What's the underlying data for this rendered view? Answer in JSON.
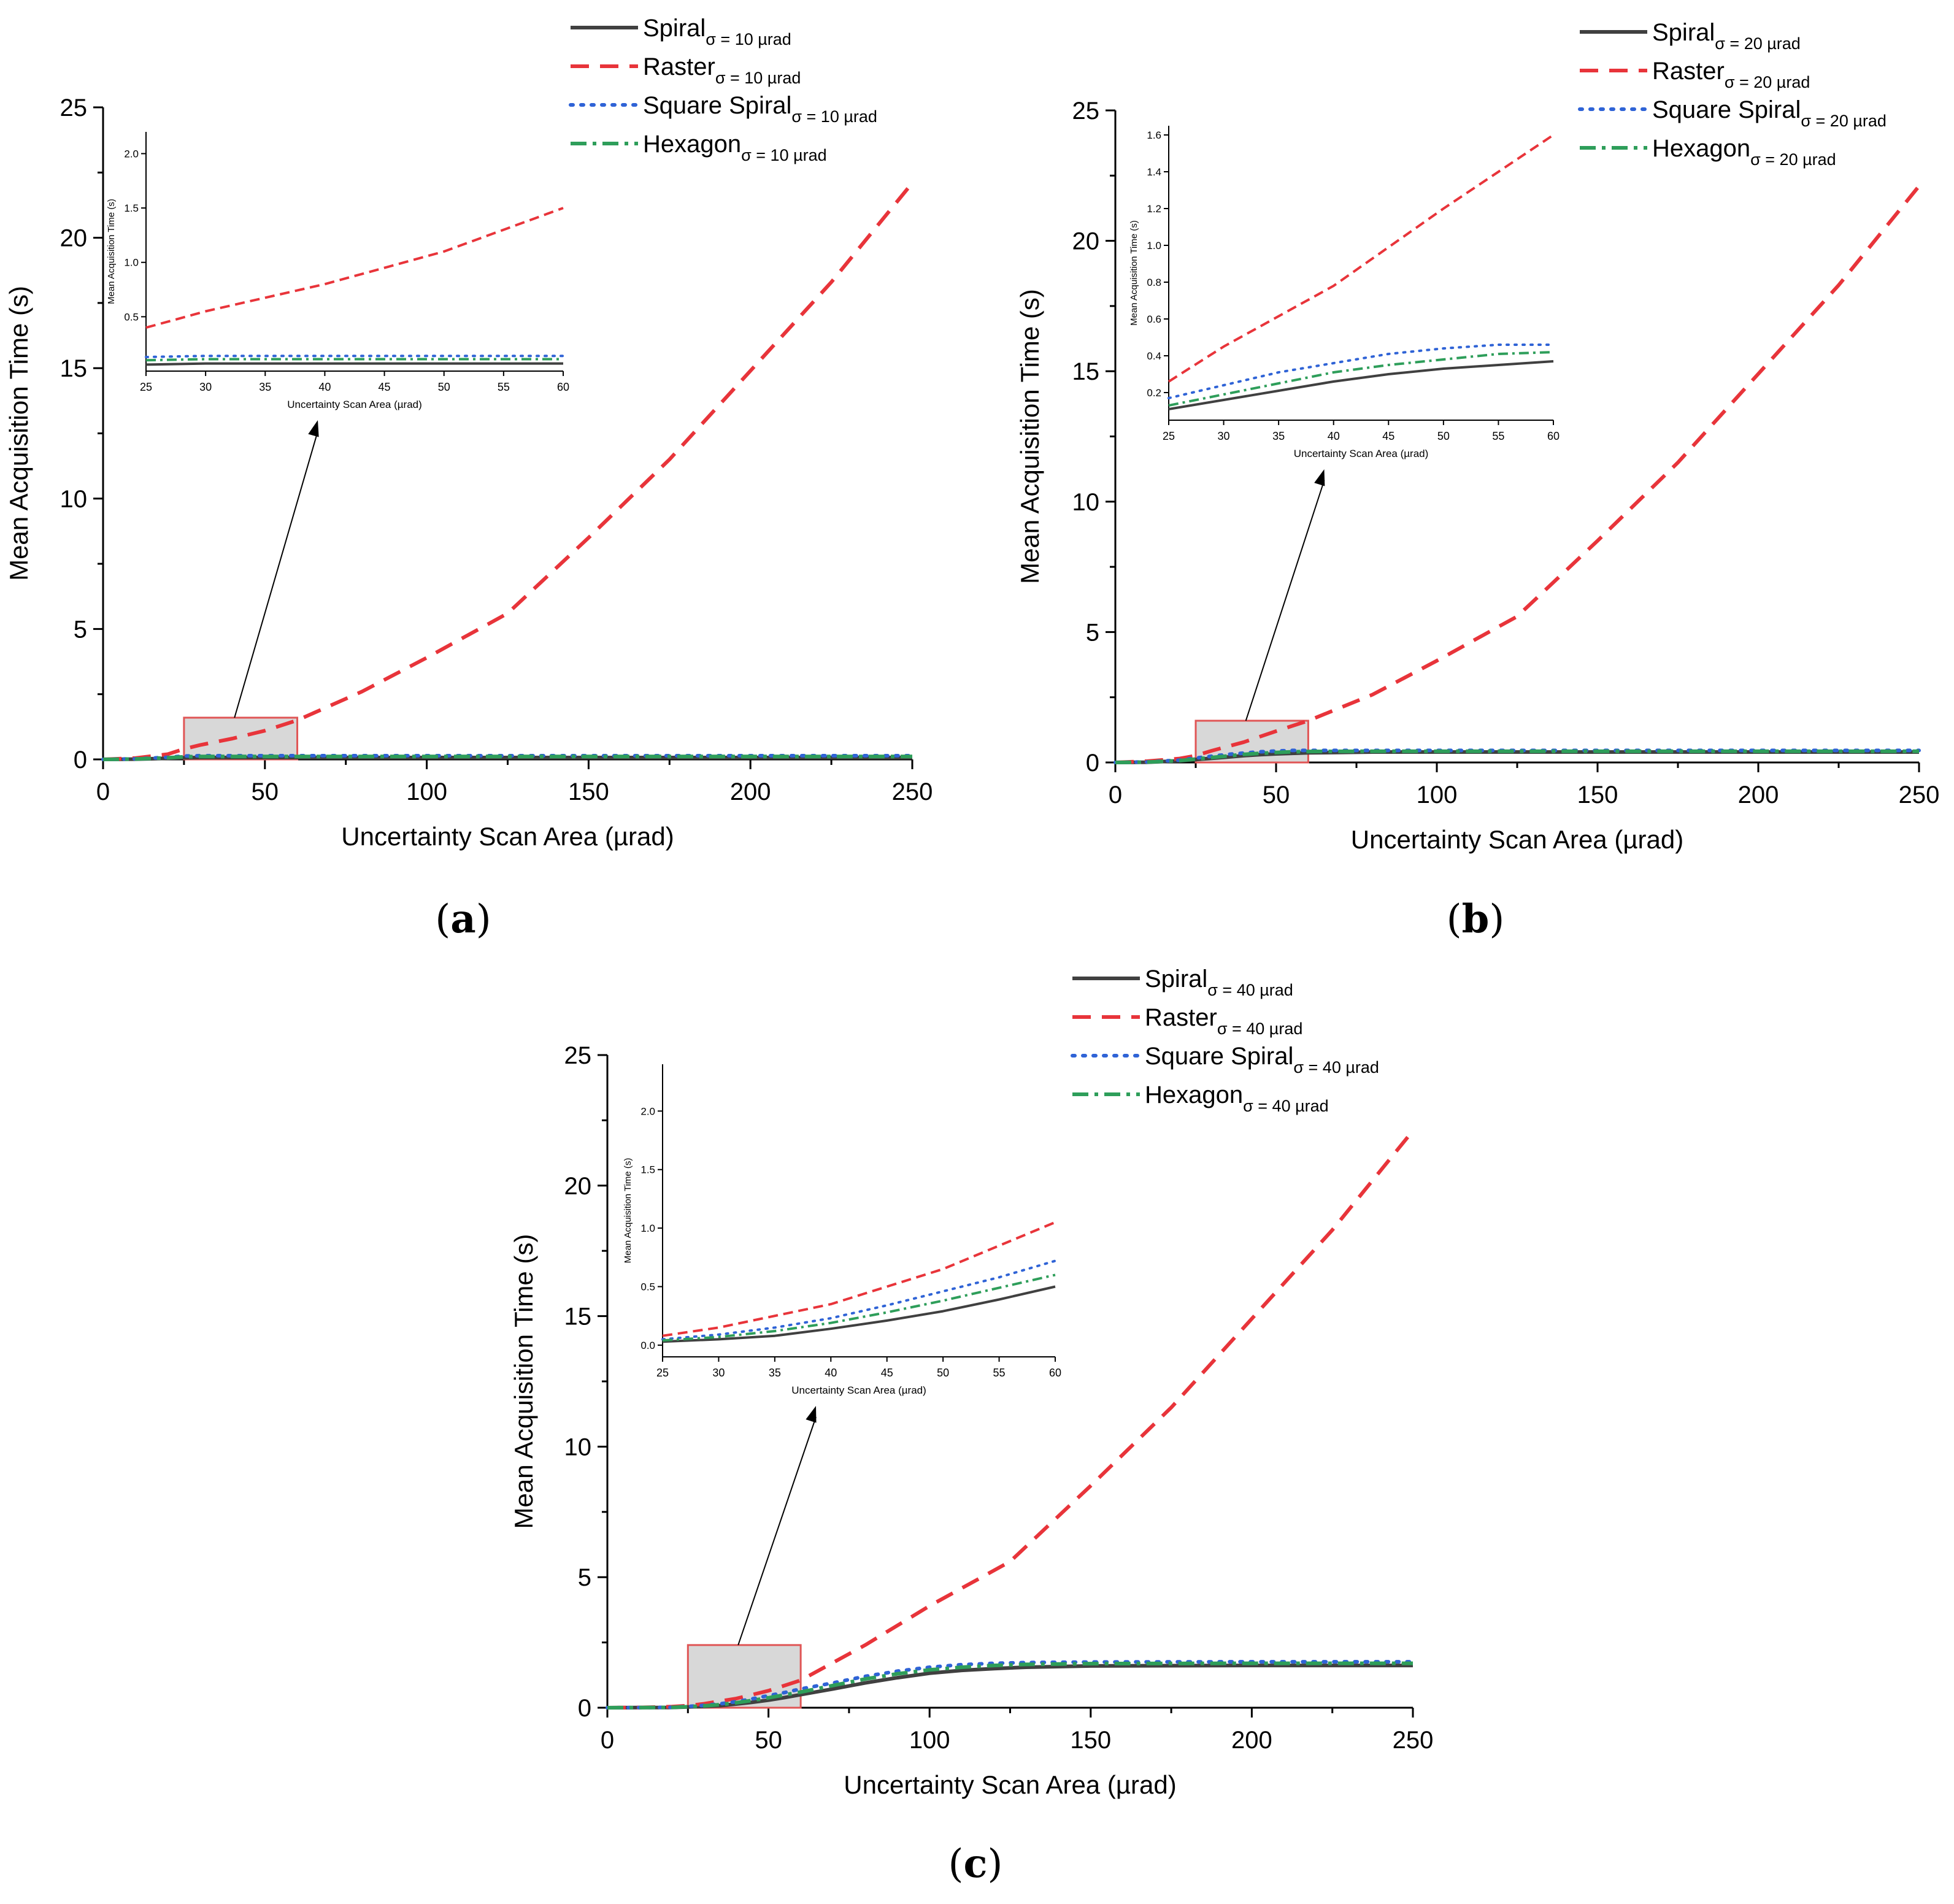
{
  "colors": {
    "spiral": "#404040",
    "raster": "#e8343a",
    "square_spiral": "#2f63d6",
    "hexagon": "#2e9e5a",
    "zoom_box": "#e05555",
    "zoom_fill": "#d8d8d8"
  },
  "chart_data": [
    {
      "panel": "a",
      "type": "line",
      "xlabel": "Uncertainty Scan Area (µrad)",
      "ylabel": "Mean Acquisition Time (s)",
      "xlim": [
        0,
        250
      ],
      "ylim": [
        0,
        25
      ],
      "xticks": [
        "0",
        "50",
        "100",
        "150",
        "200",
        "250"
      ],
      "yticks": [
        "0",
        "5",
        "10",
        "15",
        "20",
        "25"
      ],
      "legend_subscript": "σ = 10 µrad",
      "series": [
        {
          "name": "Spiral",
          "key": "spiral",
          "x": [
            0,
            10,
            20,
            25,
            30,
            40,
            60,
            80,
            100,
            150,
            200,
            250
          ],
          "y": [
            0,
            0.01,
            0.04,
            0.06,
            0.07,
            0.07,
            0.07,
            0.07,
            0.07,
            0.07,
            0.07,
            0.07
          ]
        },
        {
          "name": "Raster",
          "key": "raster",
          "x": [
            0,
            10,
            20,
            25,
            30,
            40,
            50,
            60,
            80,
            100,
            125,
            150,
            175,
            200,
            225,
            250
          ],
          "y": [
            0,
            0.05,
            0.2,
            0.4,
            0.55,
            0.8,
            1.1,
            1.5,
            2.6,
            3.9,
            5.6,
            8.5,
            11.5,
            14.9,
            18.3,
            22.1
          ]
        },
        {
          "name": "Square Spiral",
          "key": "square_spiral",
          "x": [
            0,
            10,
            20,
            25,
            30,
            40,
            60,
            80,
            100,
            150,
            200,
            250
          ],
          "y": [
            0,
            0.02,
            0.08,
            0.13,
            0.14,
            0.14,
            0.14,
            0.14,
            0.14,
            0.14,
            0.14,
            0.14
          ]
        },
        {
          "name": "Hexagon",
          "key": "hexagon",
          "x": [
            0,
            10,
            20,
            25,
            30,
            40,
            60,
            80,
            100,
            150,
            200,
            250
          ],
          "y": [
            0,
            0.015,
            0.06,
            0.1,
            0.11,
            0.11,
            0.11,
            0.11,
            0.11,
            0.11,
            0.11,
            0.11
          ]
        }
      ],
      "zoom": {
        "xrange": [
          25,
          60
        ],
        "yrange": [
          0,
          1.6
        ]
      },
      "inset": {
        "xlabel": "Uncertainty Scan Area (µrad)",
        "ylabel": "Mean Acquisition Time (s)",
        "xlim": [
          25,
          60
        ],
        "ylim": [
          0,
          2.2
        ],
        "xticks": [
          "25",
          "30",
          "35",
          "40",
          "45",
          "50",
          "55",
          "60"
        ],
        "yticks": [
          "0.5",
          "1.0",
          "1.5",
          "2.0"
        ]
      }
    },
    {
      "panel": "b",
      "type": "line",
      "xlabel": "Uncertainty Scan Area (µrad)",
      "ylabel": "Mean Acquisition Time (s)",
      "xlim": [
        0,
        250
      ],
      "ylim": [
        0,
        25
      ],
      "xticks": [
        "0",
        "50",
        "100",
        "150",
        "200",
        "250"
      ],
      "yticks": [
        "0",
        "5",
        "10",
        "15",
        "20",
        "25"
      ],
      "legend_subscript": "σ = 20 µrad",
      "series": [
        {
          "name": "Spiral",
          "key": "spiral",
          "x": [
            0,
            10,
            20,
            25,
            30,
            35,
            40,
            45,
            50,
            55,
            60,
            80,
            100,
            150,
            200,
            250
          ],
          "y": [
            0,
            0.01,
            0.06,
            0.11,
            0.16,
            0.21,
            0.26,
            0.3,
            0.33,
            0.35,
            0.37,
            0.4,
            0.4,
            0.4,
            0.4,
            0.4
          ]
        },
        {
          "name": "Raster",
          "key": "raster",
          "x": [
            0,
            10,
            20,
            25,
            30,
            40,
            50,
            60,
            80,
            100,
            125,
            150,
            175,
            200,
            225,
            250
          ],
          "y": [
            0,
            0.05,
            0.15,
            0.26,
            0.45,
            0.78,
            1.2,
            1.6,
            2.6,
            3.9,
            5.6,
            8.5,
            11.5,
            14.9,
            18.3,
            22.1
          ]
        },
        {
          "name": "Square Spiral",
          "key": "square_spiral",
          "x": [
            0,
            10,
            20,
            25,
            30,
            35,
            40,
            45,
            50,
            55,
            60,
            80,
            100,
            150,
            200,
            250
          ],
          "y": [
            0,
            0.02,
            0.09,
            0.17,
            0.24,
            0.31,
            0.36,
            0.41,
            0.44,
            0.46,
            0.46,
            0.46,
            0.46,
            0.46,
            0.46,
            0.46
          ]
        },
        {
          "name": "Hexagon",
          "key": "hexagon",
          "x": [
            0,
            10,
            20,
            25,
            30,
            35,
            40,
            45,
            50,
            55,
            60,
            80,
            100,
            150,
            200,
            250
          ],
          "y": [
            0,
            0.015,
            0.07,
            0.13,
            0.19,
            0.25,
            0.31,
            0.35,
            0.38,
            0.41,
            0.42,
            0.43,
            0.43,
            0.43,
            0.43,
            0.43
          ]
        }
      ],
      "zoom": {
        "xrange": [
          25,
          60
        ],
        "yrange": [
          0,
          1.6
        ]
      },
      "inset": {
        "xlabel": "Uncertainty Scan Area (µrad)",
        "ylabel": "Mean Acquisition Time (s)",
        "xlim": [
          25,
          60
        ],
        "ylim": [
          0.05,
          1.65
        ],
        "xticks": [
          "25",
          "30",
          "35",
          "40",
          "45",
          "50",
          "55",
          "60"
        ],
        "yticks": [
          "0.2",
          "0.4",
          "0.6",
          "0.8",
          "1.0",
          "1.2",
          "1.4",
          "1.6"
        ]
      }
    },
    {
      "panel": "c",
      "type": "line",
      "xlabel": "Uncertainty Scan Area (µrad)",
      "ylabel": "Mean Acquisition Time (s)",
      "xlim": [
        0,
        250
      ],
      "ylim": [
        0,
        25
      ],
      "xticks": [
        "0",
        "50",
        "100",
        "150",
        "200",
        "250"
      ],
      "yticks": [
        "0",
        "5",
        "10",
        "15",
        "20",
        "25"
      ],
      "legend_subscript": "σ = 40 µrad",
      "series": [
        {
          "name": "Spiral",
          "key": "spiral",
          "x": [
            0,
            10,
            20,
            25,
            30,
            35,
            40,
            45,
            50,
            55,
            60,
            70,
            80,
            90,
            100,
            110,
            120,
            130,
            150,
            200,
            250
          ],
          "y": [
            0,
            0.005,
            0.01,
            0.03,
            0.05,
            0.08,
            0.14,
            0.21,
            0.29,
            0.39,
            0.5,
            0.72,
            0.95,
            1.15,
            1.32,
            1.43,
            1.5,
            1.55,
            1.6,
            1.62,
            1.62
          ]
        },
        {
          "name": "Raster",
          "key": "raster",
          "x": [
            0,
            10,
            20,
            25,
            30,
            40,
            50,
            60,
            80,
            100,
            125,
            150,
            175,
            200,
            225,
            250
          ],
          "y": [
            0,
            0.01,
            0.04,
            0.08,
            0.15,
            0.35,
            0.65,
            1.05,
            2.4,
            3.9,
            5.6,
            8.5,
            11.5,
            14.9,
            18.3,
            22.1
          ]
        },
        {
          "name": "Square Spiral",
          "key": "square_spiral",
          "x": [
            0,
            10,
            20,
            25,
            30,
            35,
            40,
            45,
            50,
            55,
            60,
            70,
            80,
            90,
            100,
            110,
            120,
            130,
            150,
            200,
            250
          ],
          "y": [
            0,
            0.005,
            0.015,
            0.05,
            0.09,
            0.15,
            0.23,
            0.34,
            0.46,
            0.58,
            0.72,
            0.95,
            1.2,
            1.4,
            1.55,
            1.65,
            1.7,
            1.73,
            1.75,
            1.76,
            1.76
          ]
        },
        {
          "name": "Hexagon",
          "key": "hexagon",
          "x": [
            0,
            10,
            20,
            25,
            30,
            35,
            40,
            45,
            50,
            55,
            60,
            70,
            80,
            90,
            100,
            110,
            120,
            130,
            150,
            200,
            250
          ],
          "y": [
            0,
            0.005,
            0.012,
            0.04,
            0.07,
            0.12,
            0.19,
            0.28,
            0.38,
            0.49,
            0.6,
            0.85,
            1.1,
            1.3,
            1.45,
            1.55,
            1.62,
            1.66,
            1.69,
            1.7,
            1.7
          ]
        }
      ],
      "zoom": {
        "xrange": [
          25,
          60
        ],
        "yrange": [
          0,
          2.4
        ]
      },
      "inset": {
        "xlabel": "Uncertainty Scan Area (µrad)",
        "ylabel": "Mean Acquisition Time (s)",
        "xlim": [
          25,
          60
        ],
        "ylim": [
          -0.1,
          2.4
        ],
        "xticks": [
          "25",
          "30",
          "35",
          "40",
          "45",
          "50",
          "55",
          "60"
        ],
        "yticks": [
          "0.0",
          "0.5",
          "1.0",
          "1.5",
          "2.0"
        ]
      }
    }
  ],
  "panel_labels": [
    {
      "open": "(",
      "letter": "a",
      "close": ")"
    },
    {
      "open": "(",
      "letter": "b",
      "close": ")"
    },
    {
      "open": "(",
      "letter": "c",
      "close": ")"
    }
  ]
}
